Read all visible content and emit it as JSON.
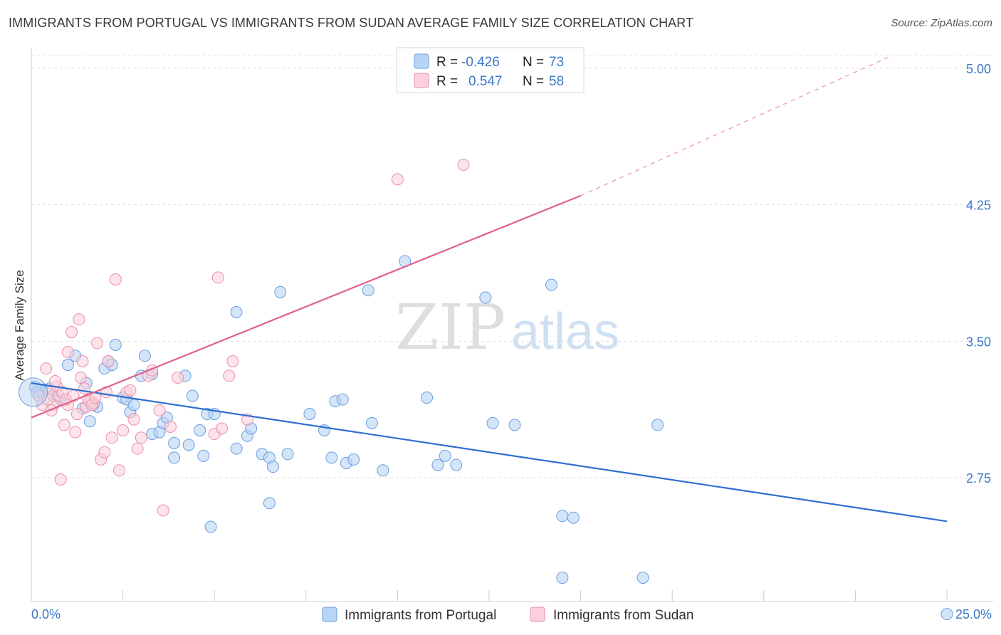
{
  "title": "IMMIGRANTS FROM PORTUGAL VS IMMIGRANTS FROM SUDAN AVERAGE FAMILY SIZE CORRELATION CHART",
  "source": "Source: ZipAtlas.com",
  "watermark": {
    "zip": "ZIP",
    "atlas": "atlas"
  },
  "legend_top": [
    {
      "r_label": "R =",
      "r_value": "-0.426",
      "n_label": "N =",
      "n_value": "73",
      "color": "#a8c8f0",
      "stroke": "#6a9ee0"
    },
    {
      "r_label": "R =",
      "r_value": "0.547",
      "n_label": "N =",
      "n_value": "58",
      "color": "#f8c0d0",
      "stroke": "#e890ac"
    }
  ],
  "legend_bottom": [
    {
      "label": "Immigrants from Portugal",
      "color": "#b8d4f4",
      "stroke": "#6a9ee0"
    },
    {
      "label": "Immigrants from Sudan",
      "color": "#fbd0dc",
      "stroke": "#e890ac"
    }
  ],
  "chart_data": {
    "type": "scatter",
    "title": "IMMIGRANTS FROM PORTUGAL VS IMMIGRANTS FROM SUDAN AVERAGE FAMILY SIZE CORRELATION CHART",
    "xlabel": "",
    "ylabel": "Average Family Size",
    "xlim": [
      0,
      25
    ],
    "ylim": [
      2.0,
      5.2
    ],
    "x_tick_labels": [
      "0.0%",
      "25.0%"
    ],
    "y_ticks": [
      2.75,
      3.5,
      4.25,
      5.0
    ],
    "y_tick_labels": [
      "2.75",
      "3.50",
      "4.25",
      "5.00"
    ],
    "grid": true,
    "series": [
      {
        "name": "Immigrants from Portugal",
        "color": "#6a9ee0",
        "fill": "#b8d4f4",
        "points": [
          [
            0.1,
            3.25
          ],
          [
            0.3,
            3.22
          ],
          [
            0.5,
            3.24
          ],
          [
            0.6,
            3.2
          ],
          [
            0.8,
            3.18
          ],
          [
            1.0,
            3.37
          ],
          [
            1.2,
            3.42
          ],
          [
            1.4,
            3.13
          ],
          [
            1.5,
            3.27
          ],
          [
            1.6,
            3.06
          ],
          [
            1.7,
            3.15
          ],
          [
            1.8,
            3.14
          ],
          [
            2.0,
            3.35
          ],
          [
            2.1,
            3.39
          ],
          [
            2.2,
            3.37
          ],
          [
            2.3,
            3.48
          ],
          [
            2.5,
            3.19
          ],
          [
            2.6,
            3.18
          ],
          [
            2.7,
            3.11
          ],
          [
            2.8,
            3.15
          ],
          [
            3.0,
            3.31
          ],
          [
            3.1,
            3.42
          ],
          [
            3.3,
            3.32
          ],
          [
            3.3,
            2.99
          ],
          [
            3.5,
            3.0
          ],
          [
            3.6,
            3.05
          ],
          [
            3.7,
            3.08
          ],
          [
            3.9,
            2.94
          ],
          [
            3.9,
            2.86
          ],
          [
            4.2,
            3.31
          ],
          [
            4.3,
            2.93
          ],
          [
            4.4,
            3.2
          ],
          [
            4.6,
            3.01
          ],
          [
            4.7,
            2.87
          ],
          [
            4.8,
            3.1
          ],
          [
            4.9,
            2.48
          ],
          [
            5.0,
            3.1
          ],
          [
            5.6,
            3.66
          ],
          [
            5.6,
            2.91
          ],
          [
            5.9,
            2.98
          ],
          [
            6.0,
            3.02
          ],
          [
            6.3,
            2.88
          ],
          [
            6.5,
            2.86
          ],
          [
            6.5,
            2.61
          ],
          [
            6.6,
            2.81
          ],
          [
            6.8,
            3.77
          ],
          [
            7.0,
            2.88
          ],
          [
            7.6,
            3.1
          ],
          [
            8.0,
            3.01
          ],
          [
            8.2,
            2.86
          ],
          [
            8.3,
            3.17
          ],
          [
            8.5,
            3.18
          ],
          [
            8.6,
            2.83
          ],
          [
            8.8,
            2.85
          ],
          [
            9.2,
            3.78
          ],
          [
            9.3,
            3.05
          ],
          [
            9.6,
            2.79
          ],
          [
            10.2,
            3.94
          ],
          [
            10.8,
            3.19
          ],
          [
            11.1,
            2.82
          ],
          [
            11.3,
            2.87
          ],
          [
            11.6,
            2.82
          ],
          [
            12.4,
            3.74
          ],
          [
            12.6,
            3.05
          ],
          [
            13.2,
            3.04
          ],
          [
            14.2,
            3.81
          ],
          [
            14.5,
            2.54
          ],
          [
            14.5,
            2.2
          ],
          [
            14.8,
            2.53
          ],
          [
            16.7,
            2.2
          ],
          [
            17.1,
            3.04
          ],
          [
            25.0,
            2.0
          ],
          [
            0.15,
            3.22
          ]
        ],
        "trend": {
          "x": [
            0,
            25
          ],
          "y": [
            3.27,
            2.51
          ]
        }
      },
      {
        "name": "Immigrants from Sudan",
        "color": "#e890ac",
        "fill": "#fbd0dc",
        "points": [
          [
            0.2,
            3.2
          ],
          [
            0.3,
            3.15
          ],
          [
            0.4,
            3.35
          ],
          [
            0.5,
            3.22
          ],
          [
            0.6,
            3.15
          ],
          [
            0.7,
            3.25
          ],
          [
            0.8,
            2.74
          ],
          [
            0.9,
            3.04
          ],
          [
            1.0,
            3.44
          ],
          [
            1.0,
            3.15
          ],
          [
            1.1,
            3.55
          ],
          [
            1.2,
            3.0
          ],
          [
            1.3,
            3.62
          ],
          [
            1.4,
            3.39
          ],
          [
            1.5,
            3.14
          ],
          [
            1.6,
            3.17
          ],
          [
            1.7,
            3.16
          ],
          [
            1.8,
            3.49
          ],
          [
            1.9,
            2.85
          ],
          [
            2.0,
            2.89
          ],
          [
            2.1,
            3.39
          ],
          [
            2.2,
            2.97
          ],
          [
            2.3,
            3.84
          ],
          [
            2.4,
            2.79
          ],
          [
            2.5,
            3.01
          ],
          [
            2.6,
            3.22
          ],
          [
            2.7,
            3.23
          ],
          [
            2.8,
            3.07
          ],
          [
            2.9,
            2.91
          ],
          [
            3.0,
            2.97
          ],
          [
            3.2,
            3.31
          ],
          [
            3.3,
            3.34
          ],
          [
            3.5,
            3.12
          ],
          [
            3.6,
            2.57
          ],
          [
            3.8,
            3.03
          ],
          [
            4.0,
            3.3
          ],
          [
            5.0,
            2.99
          ],
          [
            5.1,
            3.85
          ],
          [
            5.2,
            3.02
          ],
          [
            5.4,
            3.31
          ],
          [
            5.5,
            3.39
          ],
          [
            5.9,
            3.07
          ],
          [
            10.0,
            4.39
          ],
          [
            11.8,
            4.47
          ],
          [
            0.45,
            3.18
          ],
          [
            0.55,
            3.12
          ],
          [
            0.65,
            3.28
          ],
          [
            0.75,
            3.2
          ],
          [
            0.85,
            3.22
          ],
          [
            0.95,
            3.18
          ],
          [
            1.15,
            3.2
          ],
          [
            1.25,
            3.1
          ],
          [
            1.35,
            3.3
          ],
          [
            1.45,
            3.24
          ],
          [
            1.55,
            3.18
          ],
          [
            1.65,
            3.15
          ],
          [
            1.75,
            3.19
          ],
          [
            2.05,
            3.22
          ]
        ],
        "trend": {
          "x": [
            0,
            15
          ],
          "y": [
            3.08,
            4.3
          ]
        },
        "trend_dashed": {
          "x": [
            15,
            23.5
          ],
          "y": [
            4.3,
            5.07
          ]
        }
      }
    ]
  }
}
